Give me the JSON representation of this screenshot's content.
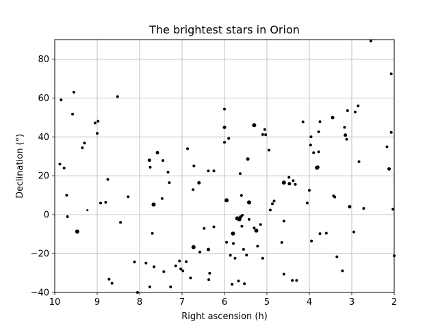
{
  "chart_data": {
    "type": "scatter",
    "title": "The brightest stars in Orion",
    "xlabel": "Right ascension (h)",
    "ylabel": "Declination (°)",
    "xlim": [
      10,
      2
    ],
    "ylim": [
      -40,
      90
    ],
    "x_reversed": true,
    "grid": true,
    "marker_color": "#000000",
    "xticks": [
      10,
      9,
      8,
      7,
      6,
      5,
      4,
      3,
      2
    ],
    "yticks": [
      -40,
      -20,
      0,
      20,
      40,
      60,
      80
    ],
    "xtick_labels": [
      "10",
      "9",
      "8",
      "7",
      "6",
      "5",
      "4",
      "3",
      "2"
    ],
    "ytick_labels": [
      "−40",
      "−20",
      "0",
      "20",
      "40",
      "60",
      "80"
    ],
    "points": [
      {
        "x": 9.88,
        "y": 26.0,
        "s": 2
      },
      {
        "x": 9.85,
        "y": 59.0,
        "s": 2
      },
      {
        "x": 9.78,
        "y": 24.0,
        "s": 2
      },
      {
        "x": 9.72,
        "y": 10.0,
        "s": 2
      },
      {
        "x": 9.7,
        "y": -1.0,
        "s": 2
      },
      {
        "x": 9.58,
        "y": 51.7,
        "s": 2
      },
      {
        "x": 9.55,
        "y": 63.0,
        "s": 2
      },
      {
        "x": 9.47,
        "y": -8.7,
        "s": 3
      },
      {
        "x": 9.35,
        "y": 34.4,
        "s": 2
      },
      {
        "x": 9.3,
        "y": 36.8,
        "s": 2
      },
      {
        "x": 9.23,
        "y": 2.3,
        "s": 1.5
      },
      {
        "x": 9.05,
        "y": 47.2,
        "s": 2
      },
      {
        "x": 8.98,
        "y": 48.0,
        "s": 2
      },
      {
        "x": 9.0,
        "y": 41.8,
        "s": 2
      },
      {
        "x": 8.92,
        "y": 6.0,
        "s": 2
      },
      {
        "x": 8.8,
        "y": 6.4,
        "s": 2
      },
      {
        "x": 8.75,
        "y": 18.1,
        "s": 2
      },
      {
        "x": 8.72,
        "y": -33.2,
        "s": 2
      },
      {
        "x": 8.65,
        "y": -35.3,
        "s": 2
      },
      {
        "x": 8.52,
        "y": 60.7,
        "s": 2
      },
      {
        "x": 8.45,
        "y": -4.0,
        "s": 2
      },
      {
        "x": 8.27,
        "y": 9.2,
        "s": 2
      },
      {
        "x": 8.12,
        "y": -24.3,
        "s": 2
      },
      {
        "x": 8.05,
        "y": -40.0,
        "s": 2
      },
      {
        "x": 7.85,
        "y": -24.9,
        "s": 2
      },
      {
        "x": 7.77,
        "y": 28.0,
        "s": 2.5
      },
      {
        "x": 7.75,
        "y": 24.4,
        "s": 2
      },
      {
        "x": 7.76,
        "y": -37.1,
        "s": 2
      },
      {
        "x": 7.7,
        "y": -9.6,
        "s": 2
      },
      {
        "x": 7.67,
        "y": 5.2,
        "s": 3
      },
      {
        "x": 7.66,
        "y": -26.8,
        "s": 2
      },
      {
        "x": 7.58,
        "y": 31.9,
        "s": 2.5
      },
      {
        "x": 7.47,
        "y": 8.3,
        "s": 2
      },
      {
        "x": 7.45,
        "y": 27.8,
        "s": 2
      },
      {
        "x": 7.43,
        "y": -29.3,
        "s": 2
      },
      {
        "x": 7.33,
        "y": 21.9,
        "s": 2
      },
      {
        "x": 7.3,
        "y": 16.5,
        "s": 2
      },
      {
        "x": 7.27,
        "y": -37.1,
        "s": 2
      },
      {
        "x": 7.15,
        "y": -26.4,
        "s": 2
      },
      {
        "x": 7.06,
        "y": -23.8,
        "s": 2
      },
      {
        "x": 7.03,
        "y": -27.9,
        "s": 2
      },
      {
        "x": 6.98,
        "y": -28.9,
        "s": 2
      },
      {
        "x": 6.9,
        "y": -24.2,
        "s": 2
      },
      {
        "x": 6.87,
        "y": 33.9,
        "s": 2
      },
      {
        "x": 6.8,
        "y": -32.5,
        "s": 2
      },
      {
        "x": 6.74,
        "y": 12.9,
        "s": 2
      },
      {
        "x": 6.73,
        "y": -16.7,
        "s": 3
      },
      {
        "x": 6.72,
        "y": 25.1,
        "s": 2
      },
      {
        "x": 6.6,
        "y": 16.4,
        "s": 2.5
      },
      {
        "x": 6.58,
        "y": -19.2,
        "s": 2
      },
      {
        "x": 6.48,
        "y": -7.0,
        "s": 2
      },
      {
        "x": 6.38,
        "y": 22.5,
        "s": 2
      },
      {
        "x": 6.38,
        "y": -17.9,
        "s": 2.5
      },
      {
        "x": 6.37,
        "y": -33.4,
        "s": 2
      },
      {
        "x": 6.35,
        "y": -30.1,
        "s": 2
      },
      {
        "x": 6.25,
        "y": 22.5,
        "s": 2
      },
      {
        "x": 6.25,
        "y": -6.3,
        "s": 2
      },
      {
        "x": 6.0,
        "y": 54.3,
        "s": 2
      },
      {
        "x": 6.0,
        "y": 44.9,
        "s": 2.5
      },
      {
        "x": 6.0,
        "y": 37.2,
        "s": 2
      },
      {
        "x": 5.95,
        "y": 7.4,
        "s": 3
      },
      {
        "x": 5.95,
        "y": -14.2,
        "s": 2
      },
      {
        "x": 5.9,
        "y": 39.2,
        "s": 2
      },
      {
        "x": 5.86,
        "y": -20.9,
        "s": 2
      },
      {
        "x": 5.82,
        "y": -35.8,
        "s": 2
      },
      {
        "x": 5.8,
        "y": -9.7,
        "s": 3
      },
      {
        "x": 5.79,
        "y": -14.8,
        "s": 2
      },
      {
        "x": 5.75,
        "y": -22.4,
        "s": 2
      },
      {
        "x": 5.7,
        "y": -1.9,
        "s": 3
      },
      {
        "x": 5.67,
        "y": -34.1,
        "s": 2
      },
      {
        "x": 5.65,
        "y": -2.4,
        "s": 3
      },
      {
        "x": 5.63,
        "y": 21.1,
        "s": 2
      },
      {
        "x": 5.62,
        "y": -1.2,
        "s": 2.5
      },
      {
        "x": 5.6,
        "y": 9.9,
        "s": 2
      },
      {
        "x": 5.59,
        "y": -5.9,
        "s": 2
      },
      {
        "x": 5.58,
        "y": -0.3,
        "s": 2
      },
      {
        "x": 5.55,
        "y": -17.8,
        "s": 2
      },
      {
        "x": 5.53,
        "y": -35.5,
        "s": 2
      },
      {
        "x": 5.48,
        "y": -20.8,
        "s": 2
      },
      {
        "x": 5.45,
        "y": 28.6,
        "s": 2.5
      },
      {
        "x": 5.42,
        "y": 6.3,
        "s": 3
      },
      {
        "x": 5.42,
        "y": -2.4,
        "s": 2
      },
      {
        "x": 5.3,
        "y": 46.0,
        "s": 3
      },
      {
        "x": 5.3,
        "y": -6.8,
        "s": 2
      },
      {
        "x": 5.25,
        "y": -8.2,
        "s": 3
      },
      {
        "x": 5.22,
        "y": -16.2,
        "s": 2
      },
      {
        "x": 5.15,
        "y": -5.1,
        "s": 2
      },
      {
        "x": 5.1,
        "y": 41.2,
        "s": 2
      },
      {
        "x": 5.1,
        "y": -22.4,
        "s": 2
      },
      {
        "x": 5.05,
        "y": 43.8,
        "s": 2
      },
      {
        "x": 5.03,
        "y": 41.1,
        "s": 2
      },
      {
        "x": 4.95,
        "y": 33.2,
        "s": 2
      },
      {
        "x": 4.92,
        "y": 2.4,
        "s": 2
      },
      {
        "x": 4.87,
        "y": 5.6,
        "s": 2
      },
      {
        "x": 4.83,
        "y": 7.0,
        "s": 2
      },
      {
        "x": 4.65,
        "y": -14.3,
        "s": 2
      },
      {
        "x": 4.6,
        "y": 16.5,
        "s": 3
      },
      {
        "x": 4.6,
        "y": -3.3,
        "s": 2
      },
      {
        "x": 4.6,
        "y": -30.6,
        "s": 2
      },
      {
        "x": 4.48,
        "y": 19.2,
        "s": 2
      },
      {
        "x": 4.47,
        "y": 15.9,
        "s": 2.5
      },
      {
        "x": 4.4,
        "y": -33.8,
        "s": 2
      },
      {
        "x": 4.38,
        "y": 17.5,
        "s": 2
      },
      {
        "x": 4.33,
        "y": 15.6,
        "s": 2
      },
      {
        "x": 4.3,
        "y": -33.8,
        "s": 2
      },
      {
        "x": 4.15,
        "y": 47.7,
        "s": 2
      },
      {
        "x": 4.05,
        "y": 6.0,
        "s": 2
      },
      {
        "x": 4.0,
        "y": 12.5,
        "s": 2
      },
      {
        "x": 3.97,
        "y": 35.8,
        "s": 2
      },
      {
        "x": 3.96,
        "y": 40.0,
        "s": 2
      },
      {
        "x": 3.95,
        "y": -13.5,
        "s": 2
      },
      {
        "x": 3.9,
        "y": 31.9,
        "s": 2
      },
      {
        "x": 3.82,
        "y": 24.1,
        "s": 3
      },
      {
        "x": 3.8,
        "y": 24.4,
        "s": 2.5
      },
      {
        "x": 3.78,
        "y": 32.3,
        "s": 2
      },
      {
        "x": 3.78,
        "y": 42.6,
        "s": 2
      },
      {
        "x": 3.75,
        "y": 47.8,
        "s": 2
      },
      {
        "x": 3.75,
        "y": -9.8,
        "s": 2
      },
      {
        "x": 3.6,
        "y": -9.5,
        "s": 2
      },
      {
        "x": 3.45,
        "y": 49.9,
        "s": 2.5
      },
      {
        "x": 3.43,
        "y": 9.7,
        "s": 2
      },
      {
        "x": 3.4,
        "y": 9.0,
        "s": 2
      },
      {
        "x": 3.35,
        "y": -21.7,
        "s": 2
      },
      {
        "x": 3.22,
        "y": -28.9,
        "s": 2
      },
      {
        "x": 3.17,
        "y": 44.9,
        "s": 2
      },
      {
        "x": 3.15,
        "y": 40.9,
        "s": 2.5
      },
      {
        "x": 3.12,
        "y": 38.8,
        "s": 2
      },
      {
        "x": 3.1,
        "y": 53.5,
        "s": 2
      },
      {
        "x": 3.05,
        "y": 4.1,
        "s": 2.5
      },
      {
        "x": 2.95,
        "y": -8.9,
        "s": 2
      },
      {
        "x": 2.92,
        "y": 52.8,
        "s": 2
      },
      {
        "x": 2.85,
        "y": 55.9,
        "s": 2
      },
      {
        "x": 2.83,
        "y": 27.3,
        "s": 2
      },
      {
        "x": 2.72,
        "y": 3.2,
        "s": 2
      },
      {
        "x": 2.55,
        "y": 89.3,
        "s": 2
      },
      {
        "x": 2.17,
        "y": 34.9,
        "s": 2
      },
      {
        "x": 2.12,
        "y": 23.5,
        "s": 2.5
      },
      {
        "x": 2.07,
        "y": 42.3,
        "s": 2
      },
      {
        "x": 2.07,
        "y": 72.4,
        "s": 2
      },
      {
        "x": 2.03,
        "y": 2.8,
        "s": 2
      },
      {
        "x": 2.0,
        "y": -21.1,
        "s": 2
      }
    ]
  }
}
